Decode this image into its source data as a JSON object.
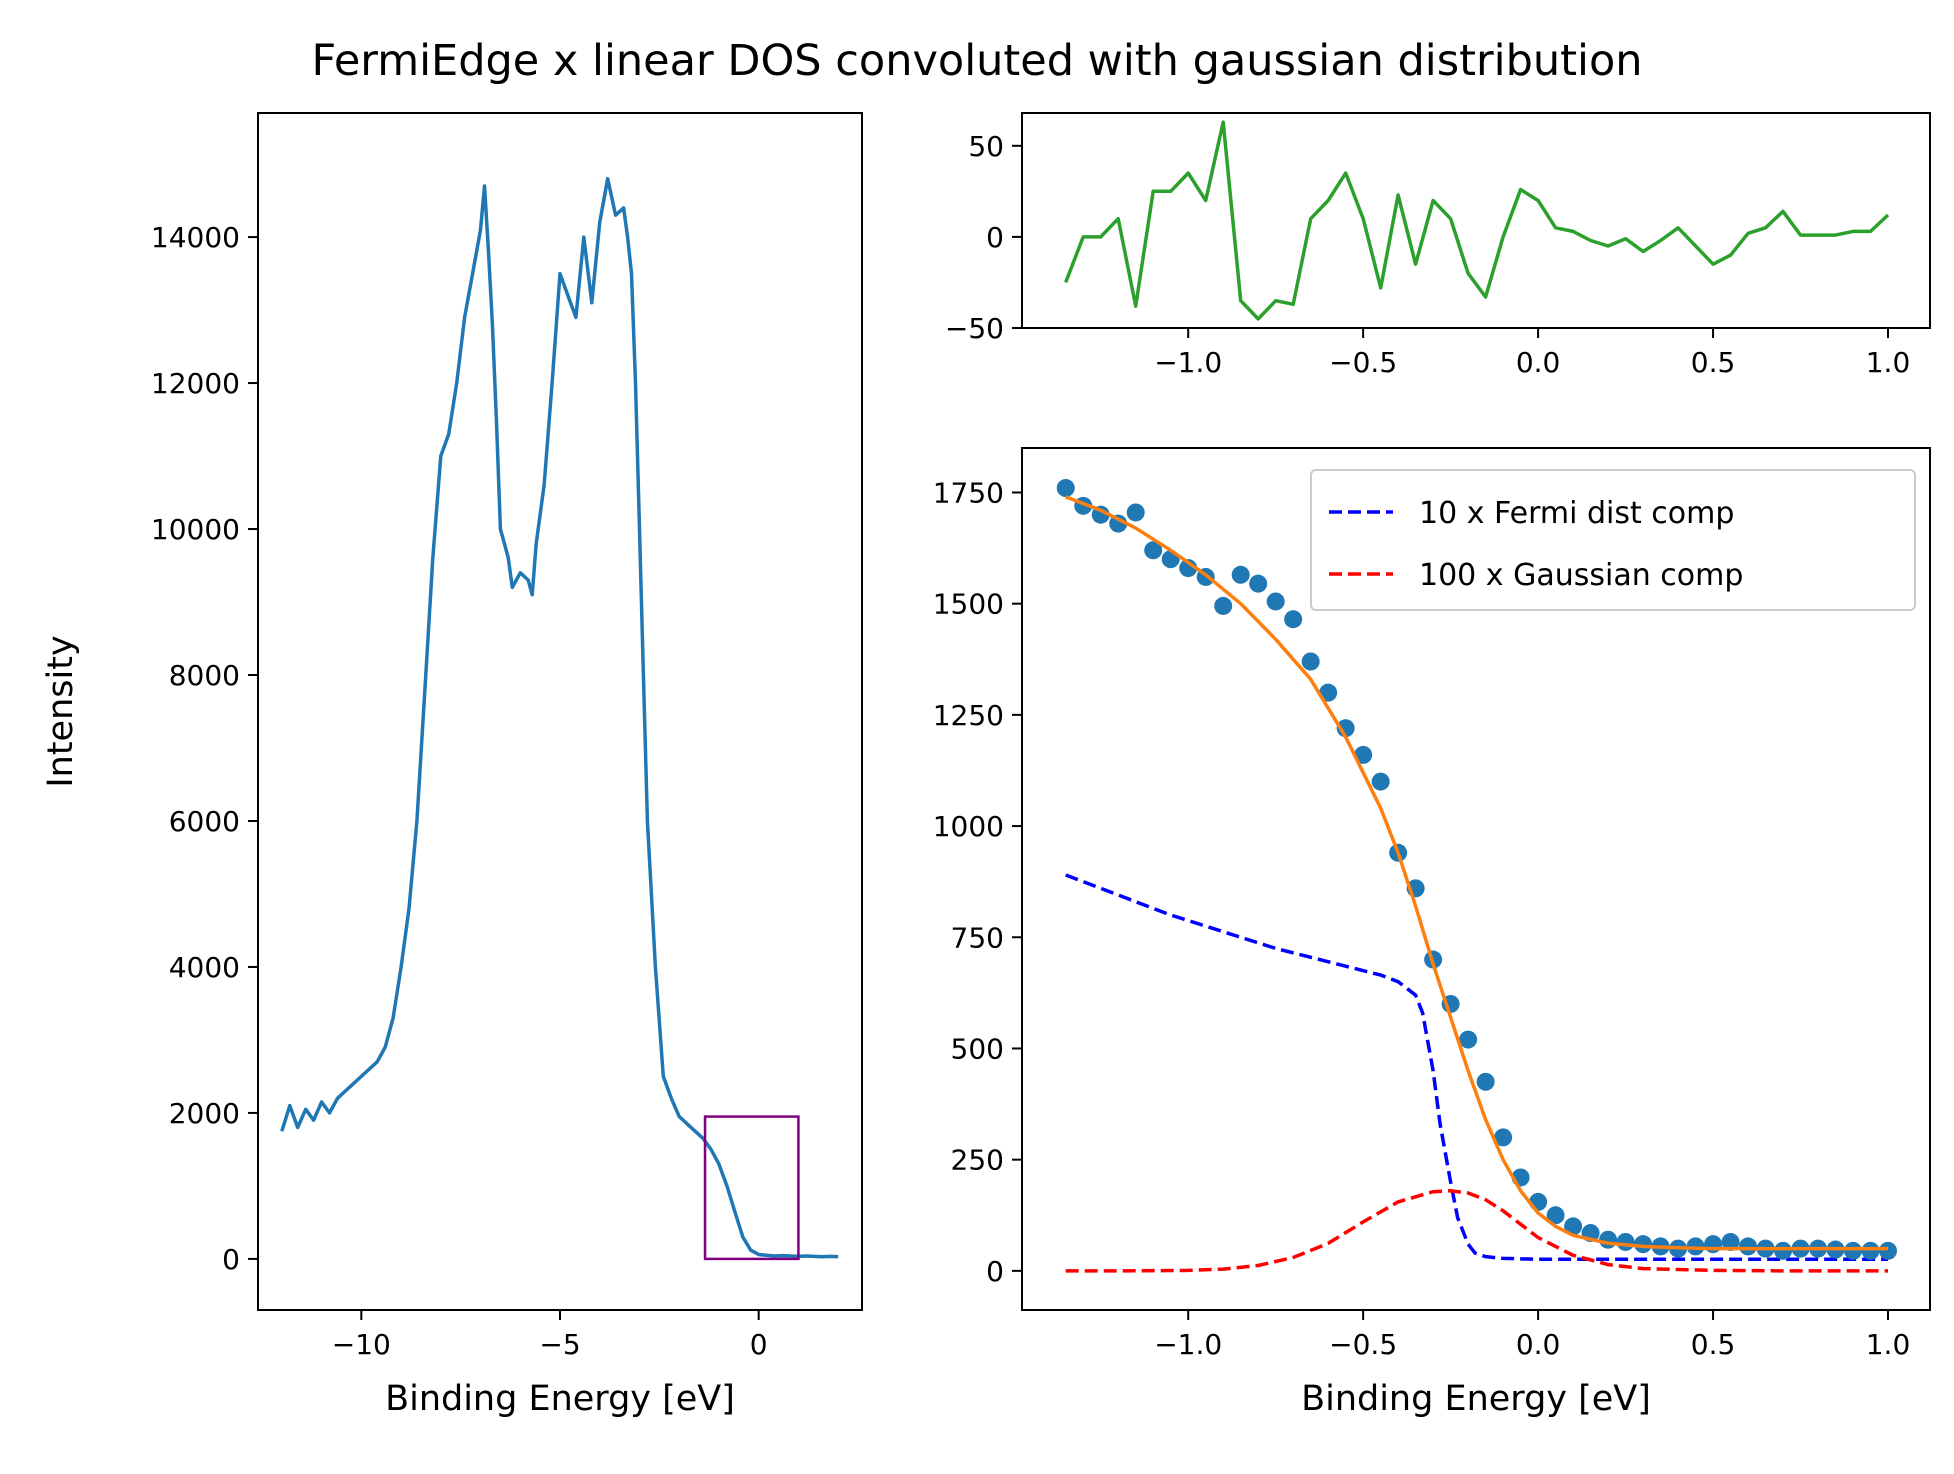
{
  "figure": {
    "title": "FermiEdge x linear DOS convoluted with gaussian distribution"
  },
  "chart_data": [
    {
      "id": "overview",
      "type": "line",
      "xlabel": "Binding Energy [eV]",
      "ylabel": "Intensity",
      "xlim": [
        -12.6,
        2.6
      ],
      "ylim": [
        -700,
        15700
      ],
      "xticks": [
        -10,
        -5,
        0
      ],
      "yticks": [
        0,
        2000,
        4000,
        6000,
        8000,
        10000,
        12000,
        14000
      ],
      "series": [
        {
          "color": "#1f77b4",
          "x": [
            -12.0,
            -11.8,
            -11.6,
            -11.4,
            -11.2,
            -11.0,
            -10.8,
            -10.6,
            -10.4,
            -10.2,
            -10.0,
            -9.8,
            -9.6,
            -9.4,
            -9.2,
            -9.0,
            -8.8,
            -8.6,
            -8.4,
            -8.2,
            -8.0,
            -7.8,
            -7.6,
            -7.4,
            -7.2,
            -7.0,
            -6.9,
            -6.8,
            -6.7,
            -6.6,
            -6.5,
            -6.4,
            -6.3,
            -6.2,
            -6.0,
            -5.8,
            -5.7,
            -5.6,
            -5.4,
            -5.2,
            -5.0,
            -4.8,
            -4.6,
            -4.4,
            -4.2,
            -4.0,
            -3.8,
            -3.6,
            -3.4,
            -3.3,
            -3.2,
            -3.1,
            -3.0,
            -2.9,
            -2.8,
            -2.6,
            -2.4,
            -2.2,
            -2.0,
            -1.8,
            -1.6,
            -1.4,
            -1.2,
            -1.0,
            -0.8,
            -0.6,
            -0.4,
            -0.2,
            0.0,
            0.2,
            0.4,
            0.6,
            0.8,
            1.0,
            1.2,
            1.4,
            1.6,
            1.8,
            2.0
          ],
          "y": [
            1750,
            2100,
            1800,
            2050,
            1900,
            2150,
            2000,
            2200,
            2300,
            2400,
            2500,
            2600,
            2700,
            2900,
            3300,
            4000,
            4800,
            6000,
            7800,
            9600,
            11000,
            11300,
            12000,
            12900,
            13500,
            14100,
            14700,
            13800,
            12800,
            11500,
            10000,
            9800,
            9600,
            9200,
            9400,
            9300,
            9100,
            9800,
            10600,
            12000,
            13500,
            13200,
            12900,
            14000,
            13100,
            14200,
            14800,
            14300,
            14400,
            14000,
            13500,
            12000,
            10000,
            8000,
            6000,
            4000,
            2500,
            2200,
            1950,
            1850,
            1750,
            1650,
            1500,
            1300,
            1000,
            650,
            300,
            120,
            60,
            50,
            40,
            45,
            40,
            35,
            40,
            35,
            30,
            35,
            30
          ]
        }
      ],
      "inset_box": {
        "x": [
          -1.35,
          1.0
        ],
        "y": [
          0,
          1950
        ],
        "color": "#800080"
      }
    },
    {
      "id": "residuals",
      "type": "line",
      "xlim": [
        -1.475,
        1.12
      ],
      "ylim": [
        -50,
        68
      ],
      "xticks": [
        -1.0,
        -0.5,
        0.0,
        0.5,
        1.0
      ],
      "xtick_labels": [
        "−1.0",
        "−0.5",
        "0.0",
        "0.5",
        "1.0"
      ],
      "yticks": [
        -50,
        0,
        50
      ],
      "ytick_labels": [
        "−50",
        "0",
        "50"
      ],
      "series": [
        {
          "color": "#2ca02c",
          "x": [
            -1.35,
            -1.3,
            -1.25,
            -1.2,
            -1.15,
            -1.1,
            -1.05,
            -1.0,
            -0.95,
            -0.9,
            -0.85,
            -0.8,
            -0.75,
            -0.7,
            -0.65,
            -0.6,
            -0.55,
            -0.5,
            -0.45,
            -0.4,
            -0.35,
            -0.3,
            -0.25,
            -0.2,
            -0.15,
            -0.1,
            -0.05,
            0.0,
            0.05,
            0.1,
            0.15,
            0.2,
            0.25,
            0.3,
            0.35,
            0.4,
            0.45,
            0.5,
            0.55,
            0.6,
            0.65,
            0.7,
            0.75,
            0.8,
            0.85,
            0.9,
            0.95,
            1.0
          ],
          "y": [
            -25,
            0,
            0,
            10,
            -38,
            25,
            25,
            35,
            20,
            63,
            -35,
            -45,
            -35,
            -37,
            10,
            20,
            35,
            10,
            -28,
            23,
            -15,
            20,
            10,
            -20,
            -33,
            0,
            26,
            20,
            5,
            3,
            -2,
            -5,
            -1,
            -8,
            -2,
            5,
            -5,
            -15,
            -10,
            2,
            5,
            14,
            1,
            1,
            1,
            3,
            3,
            12
          ]
        }
      ]
    },
    {
      "id": "fit",
      "type": "scatter",
      "xlabel": "Binding Energy [eV]",
      "xlim": [
        -1.475,
        1.12
      ],
      "ylim": [
        -88,
        1850
      ],
      "xticks": [
        -1.0,
        -0.5,
        0.0,
        0.5,
        1.0
      ],
      "xtick_labels": [
        "−1.0",
        "−0.5",
        "0.0",
        "0.5",
        "1.0"
      ],
      "yticks": [
        0,
        250,
        500,
        750,
        1000,
        1250,
        1500,
        1750
      ],
      "legend": {
        "placement": "upper right",
        "entries": [
          {
            "label": "10 x Fermi dist comp",
            "color": "#0000ff",
            "style": "dashed"
          },
          {
            "label": "100 x Gaussian comp",
            "color": "#ff0000",
            "style": "dashed"
          }
        ]
      },
      "series": [
        {
          "kind": "points",
          "color": "#1f77b4",
          "x": [
            -1.35,
            -1.3,
            -1.25,
            -1.2,
            -1.15,
            -1.1,
            -1.05,
            -1.0,
            -0.95,
            -0.9,
            -0.85,
            -0.8,
            -0.75,
            -0.7,
            -0.65,
            -0.6,
            -0.55,
            -0.5,
            -0.45,
            -0.4,
            -0.35,
            -0.3,
            -0.25,
            -0.2,
            -0.15,
            -0.1,
            -0.05,
            0.0,
            0.05,
            0.1,
            0.15,
            0.2,
            0.25,
            0.3,
            0.35,
            0.4,
            0.45,
            0.5,
            0.55,
            0.6,
            0.65,
            0.7,
            0.75,
            0.8,
            0.85,
            0.9,
            0.95,
            1.0
          ],
          "y": [
            1760,
            1720,
            1700,
            1680,
            1705,
            1620,
            1600,
            1580,
            1560,
            1495,
            1565,
            1545,
            1505,
            1465,
            1370,
            1300,
            1220,
            1160,
            1100,
            940,
            860,
            700,
            600,
            520,
            425,
            300,
            210,
            155,
            125,
            100,
            85,
            70,
            65,
            60,
            55,
            50,
            55,
            60,
            65,
            55,
            50,
            45,
            50,
            50,
            48,
            45,
            45,
            45
          ]
        },
        {
          "kind": "fit",
          "color": "#ff7f0e",
          "x": [
            -1.35,
            -1.25,
            -1.15,
            -1.05,
            -0.95,
            -0.85,
            -0.75,
            -0.65,
            -0.55,
            -0.45,
            -0.4,
            -0.35,
            -0.3,
            -0.25,
            -0.2,
            -0.15,
            -0.1,
            -0.05,
            0.0,
            0.05,
            0.1,
            0.2,
            0.3,
            0.4,
            0.5,
            0.6,
            0.7,
            0.8,
            0.9,
            1.0
          ],
          "y": [
            1740,
            1710,
            1670,
            1620,
            1565,
            1500,
            1420,
            1330,
            1200,
            1040,
            940,
            820,
            690,
            570,
            450,
            340,
            250,
            180,
            130,
            100,
            80,
            62,
            55,
            52,
            50,
            50,
            50,
            50,
            50,
            50
          ]
        },
        {
          "kind": "fermi",
          "label": "10 x Fermi dist comp",
          "color": "#0000ff",
          "x": [
            -1.35,
            -1.25,
            -1.15,
            -1.05,
            -0.95,
            -0.85,
            -0.75,
            -0.65,
            -0.55,
            -0.45,
            -0.4,
            -0.35,
            -0.33,
            -0.3,
            -0.28,
            -0.25,
            -0.23,
            -0.2,
            -0.18,
            -0.15,
            -0.1,
            0.0,
            0.2,
            0.5,
            1.0
          ],
          "y": [
            890,
            860,
            830,
            800,
            775,
            750,
            725,
            705,
            685,
            665,
            650,
            620,
            580,
            450,
            330,
            200,
            120,
            60,
            40,
            32,
            28,
            26,
            26,
            26,
            26
          ]
        },
        {
          "kind": "gauss",
          "label": "100 x Gaussian comp",
          "color": "#ff0000",
          "x": [
            -1.35,
            -1.2,
            -1.0,
            -0.9,
            -0.8,
            -0.7,
            -0.6,
            -0.5,
            -0.4,
            -0.3,
            -0.25,
            -0.2,
            -0.15,
            -0.1,
            -0.05,
            0.0,
            0.1,
            0.2,
            0.3,
            0.5,
            0.7,
            1.0
          ],
          "y": [
            0,
            0,
            1,
            4,
            12,
            30,
            62,
            110,
            155,
            178,
            180,
            175,
            160,
            135,
            105,
            75,
            35,
            14,
            5,
            1,
            0,
            0
          ]
        }
      ]
    }
  ]
}
